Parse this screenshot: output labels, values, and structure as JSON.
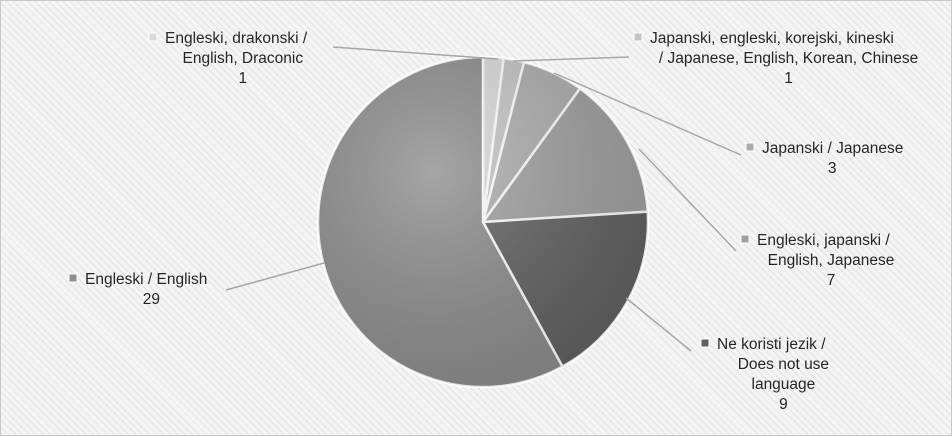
{
  "chart_data": {
    "type": "pie",
    "slices": [
      {
        "label_lines": [
          "Engleski, drakonski /",
          "English, Draconic"
        ],
        "value": 1,
        "color": "#d9d9d9"
      },
      {
        "label_lines": [
          "Japanski, engleski, korejski, kineski",
          "/ Japanese, English, Korean, Chinese"
        ],
        "value": 1,
        "color": "#c4c4c4"
      },
      {
        "label_lines": [
          "Japanski / Japanese"
        ],
        "value": 3,
        "color": "#adadad"
      },
      {
        "label_lines": [
          "Engleski, japanski /",
          "English, Japanese"
        ],
        "value": 7,
        "color": "#a0a0a0"
      },
      {
        "label_lines": [
          "Ne koristi jezik /",
          "Does not use",
          "language"
        ],
        "value": 9,
        "color": "#616161"
      },
      {
        "label_lines": [
          "Engleski / English"
        ],
        "value": 29,
        "color": "#8c8c8c"
      }
    ],
    "data_labels": "category-and-value",
    "legend": "none"
  }
}
